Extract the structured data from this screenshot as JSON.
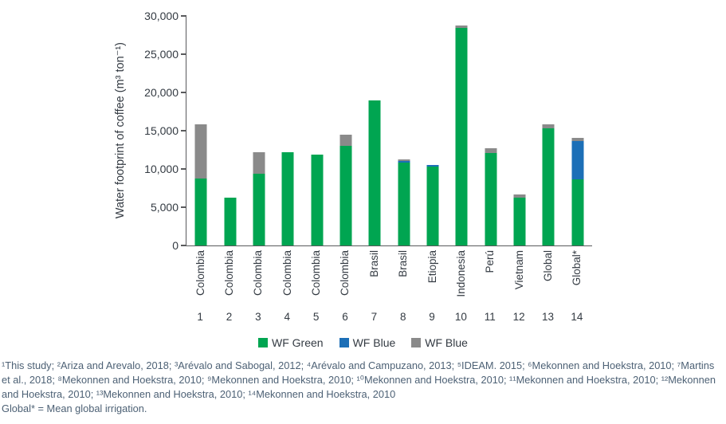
{
  "chart_data": {
    "type": "bar",
    "stacked": true,
    "ylabel": "Water footprint of coffee (m³ ton⁻¹)",
    "xlabel": "",
    "ylim": [
      0,
      30000
    ],
    "grid": false,
    "legend_position": "bottom-center",
    "y_ticks": [
      {
        "value": 0,
        "label": "0"
      },
      {
        "value": 5000,
        "label": "5,000"
      },
      {
        "value": 10000,
        "label": "10,000"
      },
      {
        "value": 15000,
        "label": "15,000"
      },
      {
        "value": 20000,
        "label": "20,000"
      },
      {
        "value": 25000,
        "label": "25,000"
      },
      {
        "value": 30000,
        "label": "30,000"
      }
    ],
    "series": [
      {
        "name": "WF Green",
        "color": "#00A551"
      },
      {
        "name": "WF Blue",
        "color": "#1C6FB7"
      },
      {
        "name": "WF Blue",
        "color": "#8A8A8A"
      }
    ],
    "bars": [
      {
        "country": "Colombia",
        "number": "1",
        "green": 8700,
        "blue": 0,
        "gray": 7100
      },
      {
        "country": "Colombia",
        "number": "2",
        "green": 6300,
        "blue": 0,
        "gray": 0
      },
      {
        "country": "Colombia",
        "number": "3",
        "green": 9400,
        "blue": 0,
        "gray": 2800
      },
      {
        "country": "Colombia",
        "number": "4",
        "green": 12200,
        "blue": 0,
        "gray": 0
      },
      {
        "country": "Colombia",
        "number": "5",
        "green": 11900,
        "blue": 0,
        "gray": 0
      },
      {
        "country": "Colombia",
        "number": "6",
        "green": 13000,
        "blue": 0,
        "gray": 1500
      },
      {
        "country": "Brasil",
        "number": "7",
        "green": 19000,
        "blue": 0,
        "gray": 0
      },
      {
        "country": "Brasil",
        "number": "8",
        "green": 10800,
        "blue": 200,
        "gray": 300
      },
      {
        "country": "Etiopia",
        "number": "9",
        "green": 10350,
        "blue": 200,
        "gray": 0
      },
      {
        "country": "Indonesia",
        "number": "10",
        "green": 28400,
        "blue": 0,
        "gray": 400
      },
      {
        "country": "Perú",
        "number": "11",
        "green": 12050,
        "blue": 0,
        "gray": 700
      },
      {
        "country": "Vietnam",
        "number": "12",
        "green": 6300,
        "blue": 0,
        "gray": 400
      },
      {
        "country": "Global",
        "number": "13",
        "green": 15300,
        "blue": 0,
        "gray": 550
      },
      {
        "country": "Global*",
        "number": "14",
        "green": 8650,
        "blue": 5050,
        "gray": 400
      }
    ]
  },
  "legend": {
    "items": [
      {
        "label": "WF Green",
        "color": "#00A551"
      },
      {
        "label": "WF Blue",
        "color": "#1C6FB7"
      },
      {
        "label": "WF Blue",
        "color": "#8A8A8A"
      }
    ]
  },
  "footnotes": {
    "lines": [
      "¹This study; ²Ariza and Arevalo, 2018; ³Arévalo and Sabogal, 2012; ⁴Arévalo and Campuzano, 2013; ⁵IDEAM. 2015; ⁶Mekonnen and Hoekstra, 2010; ⁷Martins",
      "et al., 2018; ⁸Mekonnen and Hoekstra, 2010; ⁹Mekonnen and Hoekstra, 2010; ¹⁰Mekonnen and Hoekstra, 2010; ¹¹Mekonnen and Hoekstra, 2010; ¹²Mekonnen",
      "and Hoekstra, 2010; ¹³Mekonnen and Hoekstra, 2010; ¹⁴Mekonnen and Hoekstra, 2010",
      "Global* = Mean global irrigation."
    ]
  },
  "colors": {
    "green": "#00A551",
    "blue": "#1C6FB7",
    "gray": "#8A8A8A",
    "axis": "#595A5C",
    "text": "#333A42",
    "footnote": "#4D6175"
  }
}
